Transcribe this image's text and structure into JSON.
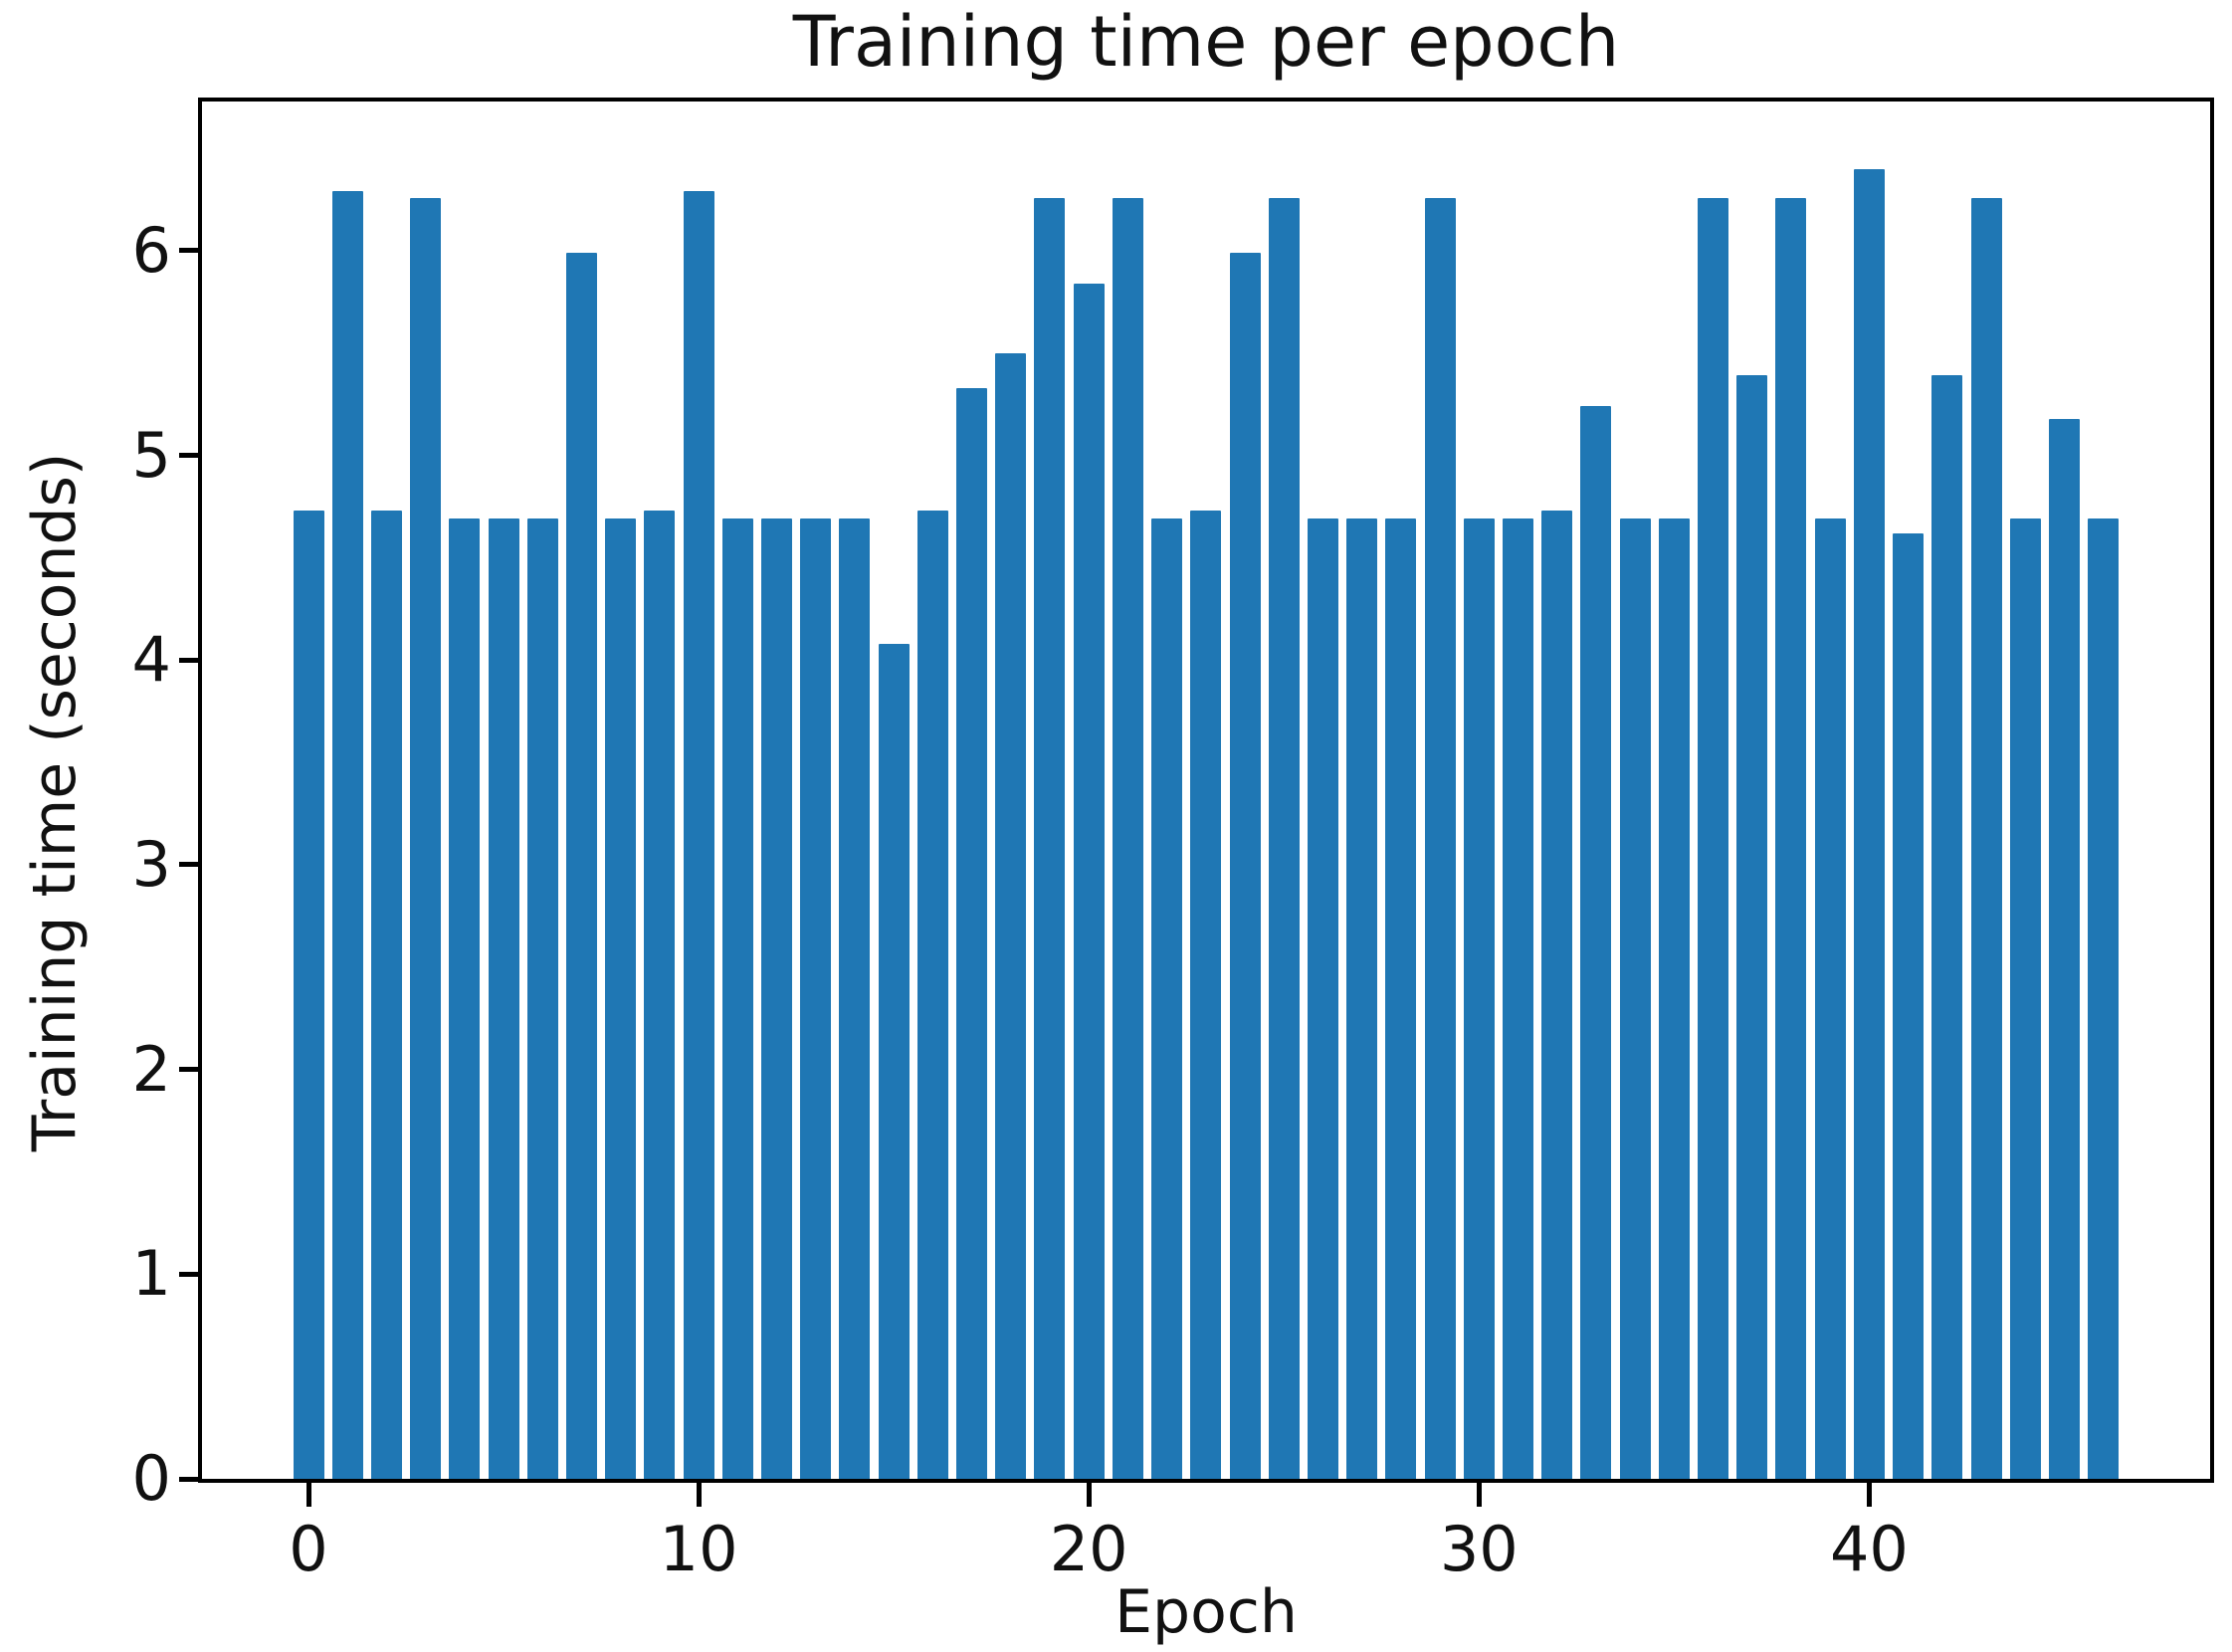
{
  "chart_data": {
    "type": "bar",
    "title": "Training time per epoch",
    "xlabel": "Epoch",
    "ylabel": "Training time (seconds)",
    "categories": [
      0,
      1,
      2,
      3,
      4,
      5,
      6,
      7,
      8,
      9,
      10,
      11,
      12,
      13,
      14,
      15,
      16,
      17,
      18,
      19,
      20,
      21,
      22,
      23,
      24,
      25,
      26,
      27,
      28,
      29,
      30,
      31,
      32,
      33,
      34,
      35,
      36,
      37,
      38,
      39,
      40,
      41,
      42,
      43,
      44,
      45,
      46
    ],
    "values": [
      4.73,
      6.29,
      4.73,
      6.26,
      4.69,
      4.69,
      4.69,
      5.99,
      4.69,
      4.73,
      6.29,
      4.69,
      4.69,
      4.69,
      4.69,
      4.08,
      4.73,
      5.33,
      5.5,
      6.26,
      5.84,
      6.26,
      4.69,
      4.73,
      5.99,
      6.26,
      4.69,
      4.69,
      4.69,
      6.26,
      4.69,
      4.69,
      4.73,
      5.24,
      4.69,
      4.69,
      6.26,
      5.39,
      6.26,
      4.69,
      6.4,
      4.62,
      5.39,
      6.26,
      4.69,
      5.18,
      4.69
    ],
    "x_ticks": [
      0,
      10,
      20,
      30,
      40
    ],
    "y_ticks": [
      0,
      1,
      2,
      3,
      4,
      5,
      6
    ],
    "xlim": [
      -2.73,
      48.75
    ],
    "ylim": [
      0,
      6.73
    ],
    "grid": false,
    "legend_position": "none",
    "bar_color": "#1f77b4",
    "text_color": "#111111",
    "spine_color": "#000000"
  }
}
